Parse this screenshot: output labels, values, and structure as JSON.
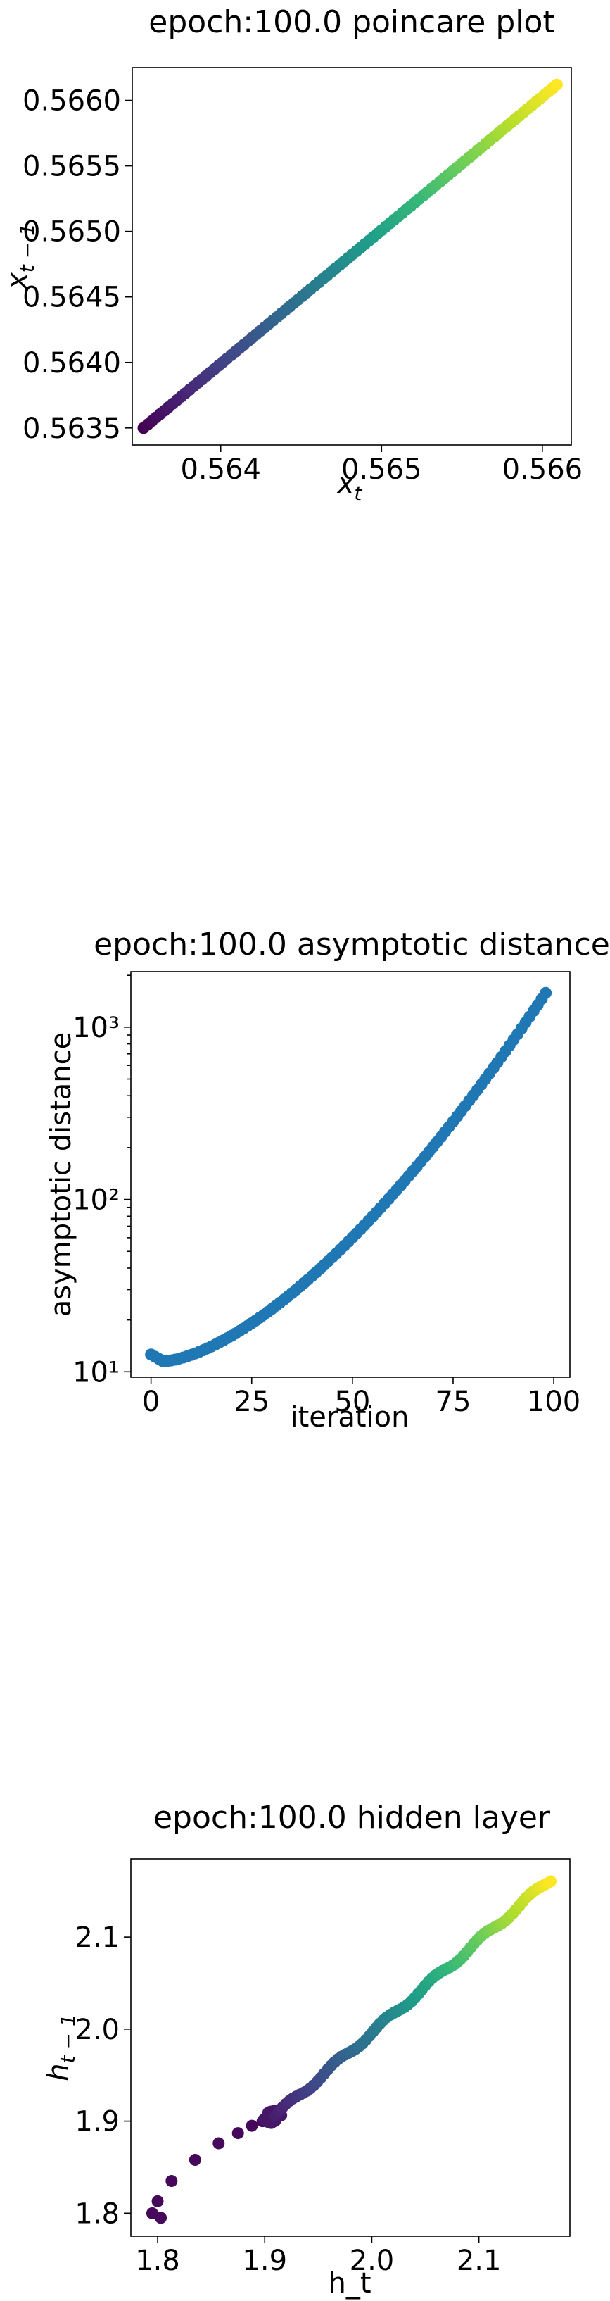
{
  "chart_data": [
    {
      "type": "scatter",
      "title": "epoch:100.0 poincare plot",
      "xlabel_main": "x",
      "xlabel_sub": "t",
      "ylabel_main": "x",
      "ylabel_sub": "t − 1",
      "xlim": [
        0.56345,
        0.56618
      ],
      "ylim": [
        0.56337,
        0.56625
      ],
      "xticks": [
        0.564,
        0.565,
        0.566
      ],
      "xtick_labels": [
        "0.564",
        "0.565",
        "0.566"
      ],
      "yticks": [
        0.5635,
        0.564,
        0.5645,
        0.565,
        0.5655,
        0.566
      ],
      "ytick_labels": [
        "0.5635",
        "0.5640",
        "0.5645",
        "0.5650",
        "0.5655",
        "0.5660"
      ],
      "colormap": "viridis",
      "series": [
        {
          "x_start": 0.56352,
          "x_end": 0.56609,
          "y_start": 0.5635,
          "y_end": 0.56612,
          "count": 100
        }
      ]
    },
    {
      "type": "scatter",
      "title": "epoch:100.0 asymptotic distance",
      "xlabel": "iteration",
      "ylabel": "asymptotic distance",
      "yscale": "log",
      "xlim": [
        -5,
        104
      ],
      "ylim": [
        9.3,
        2100
      ],
      "xticks": [
        0,
        25,
        50,
        75,
        100
      ],
      "xtick_labels": [
        "0",
        "25",
        "50",
        "75",
        "100"
      ],
      "yticks": [
        10,
        100,
        1000
      ],
      "ytick_labels": [
        "10¹",
        "10²",
        "10³"
      ],
      "color": "#1f77b4",
      "series": [
        {
          "x_start": 0,
          "x_end": 98,
          "y_first": 12.6,
          "y_min": 11.5,
          "y_min_at": 3,
          "y_end": 1580
        }
      ]
    },
    {
      "type": "scatter",
      "title": "epoch:100.0 hidden layer",
      "xlabel": "h_t",
      "ylabel_main": "h",
      "ylabel_sub": "t − 1",
      "xlim": [
        1.775,
        2.185
      ],
      "ylim": [
        1.775,
        2.185
      ],
      "xticks": [
        1.8,
        1.9,
        2.0,
        2.1
      ],
      "xtick_labels": [
        "1.8",
        "1.9",
        "2.0",
        "2.1"
      ],
      "yticks": [
        1.8,
        1.9,
        2.0,
        2.1
      ],
      "ytick_labels": [
        "1.8",
        "1.9",
        "2.0",
        "2.1"
      ],
      "colormap": "viridis",
      "series": [
        {
          "early_points": [
            [
              1.795,
              1.8
            ],
            [
              1.8,
              1.813
            ],
            [
              1.803,
              1.795
            ],
            [
              1.813,
              1.835
            ],
            [
              1.835,
              1.858
            ],
            [
              1.857,
              1.876
            ],
            [
              1.875,
              1.887
            ],
            [
              1.888,
              1.895
            ],
            [
              1.898,
              1.9
            ],
            [
              1.905,
              1.907
            ]
          ],
          "cluster_center": [
            1.907,
            1.905
          ],
          "diag_start": 1.91,
          "diag_end": 2.167
        }
      ]
    }
  ]
}
